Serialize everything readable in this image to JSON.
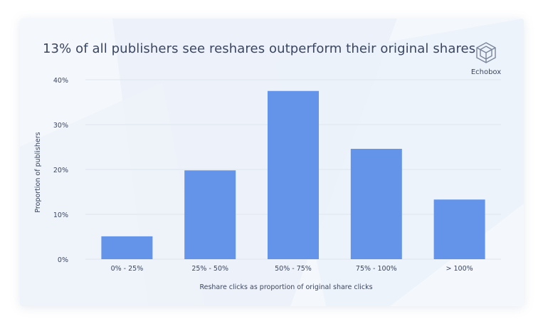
{
  "header": {
    "title": "13% of all publishers see reshares outperform their original shares",
    "brand": "Echobox"
  },
  "colors": {
    "bar": "#6494ea",
    "grid": "#dfe5ee",
    "text": "#3a4660",
    "card_bg": "#f4f7fc"
  },
  "chart_data": {
    "type": "bar",
    "title": "13% of all publishers see reshares outperform their original shares",
    "xlabel": "Reshare clicks as proportion of original share clicks",
    "ylabel": "Proportion of publishers",
    "categories": [
      "0% - 25%",
      "25% - 50%",
      "50% - 75%",
      "75% - 100%",
      "> 100%"
    ],
    "values": [
      5.1,
      19.8,
      37.5,
      24.6,
      13.3
    ],
    "ylim": [
      0,
      40
    ],
    "yticks": [
      0,
      10,
      20,
      30,
      40
    ],
    "ytick_labels": [
      "0%",
      "10%",
      "20%",
      "30%",
      "40%"
    ],
    "grid": true
  }
}
